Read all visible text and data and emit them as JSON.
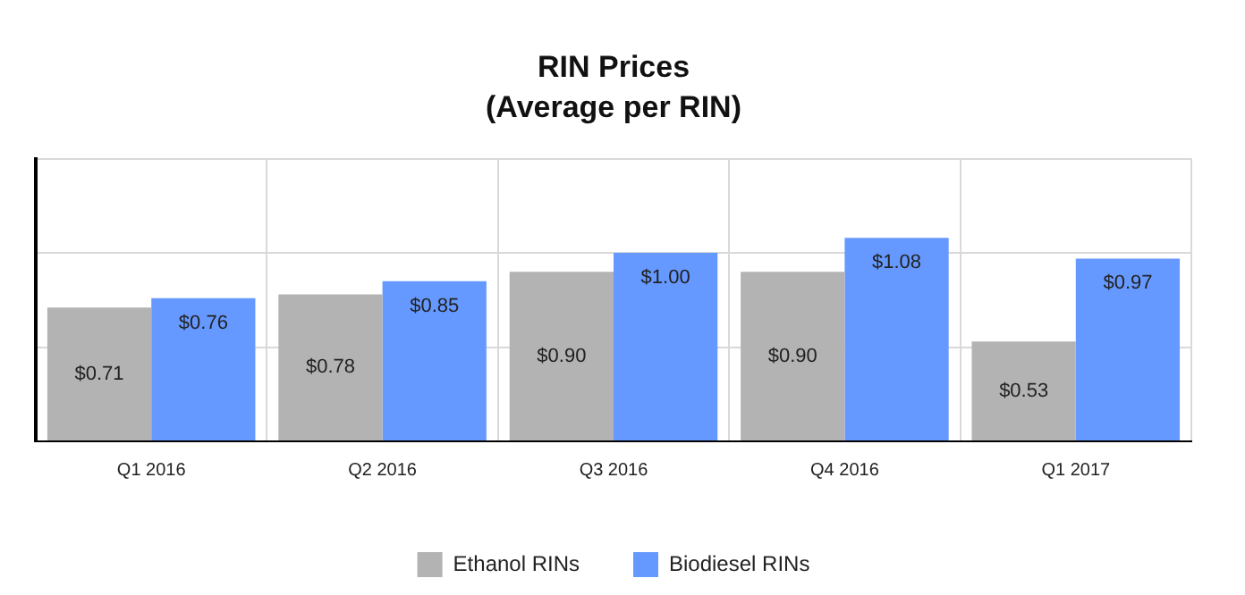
{
  "chart_data": {
    "type": "bar",
    "title": "RIN Prices",
    "subtitle": "(Average per RIN)",
    "categories": [
      "Q1 2016",
      "Q2 2016",
      "Q3 2016",
      "Q4 2016",
      "Q1 2017"
    ],
    "series": [
      {
        "name": "Ethanol RINs",
        "color": "#b3b3b3",
        "values": [
          0.71,
          0.78,
          0.9,
          0.9,
          0.53
        ],
        "value_labels": [
          "$0.71",
          "$0.78",
          "$0.90",
          "$0.90",
          "$0.53"
        ]
      },
      {
        "name": "Biodiesel RINs",
        "color": "#6699ff",
        "values": [
          0.76,
          0.85,
          1.0,
          1.08,
          0.97
        ],
        "value_labels": [
          "$0.76",
          "$0.85",
          "$1.00",
          "$1.08",
          "$0.97"
        ]
      }
    ],
    "ylim": [
      0,
      1.5
    ],
    "yticks": [
      {
        "value": 0,
        "label": null
      },
      {
        "value": 0.5,
        "label": null
      },
      {
        "value": 1,
        "label": null
      },
      {
        "value": 1.5,
        "label": null
      }
    ],
    "tick_labels": "x",
    "grid": true,
    "legend": "bottom"
  }
}
